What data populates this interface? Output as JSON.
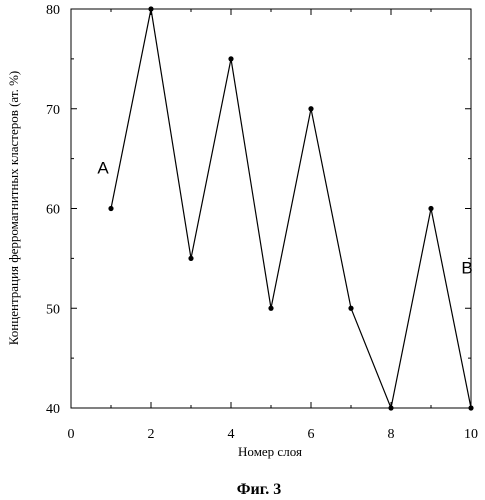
{
  "chart_data": {
    "type": "line",
    "title": "",
    "xlabel": "Номер слоя",
    "ylabel": "Концентрация ферромагнитных кластеров  (ат. %)",
    "xlim": [
      0,
      10
    ],
    "ylim": [
      40,
      80
    ],
    "x_ticks": [
      0,
      2,
      4,
      6,
      8,
      10
    ],
    "y_ticks": [
      40,
      50,
      60,
      70,
      80
    ],
    "grid": false,
    "series": [
      {
        "x": [
          1,
          2,
          3,
          4,
          5,
          6,
          7,
          8,
          9,
          10
        ],
        "values": [
          60,
          80,
          55,
          75,
          50,
          70,
          50,
          40,
          60,
          40
        ]
      }
    ],
    "annotations": [
      {
        "text": "A",
        "x": 0.8,
        "y": 63.5
      },
      {
        "text": "B",
        "x": 9.9,
        "y": 53.5
      }
    ],
    "colors": {
      "line": "#000000",
      "marker": "#000000"
    }
  },
  "caption": "Фиг. 3"
}
